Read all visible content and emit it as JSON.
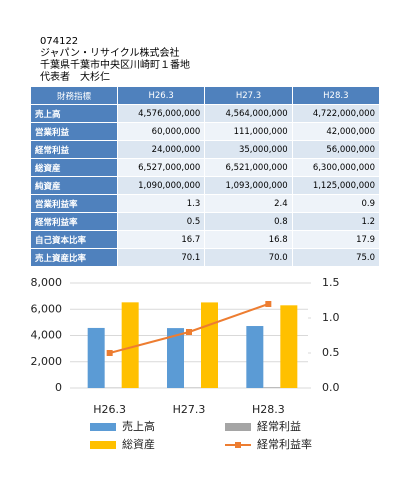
{
  "header": {
    "code": "074122",
    "company": "ジャパン・リサイクル株式会社",
    "address": "千葉県千葉市中央区川崎町１番地",
    "representative": "代表者　大杉仁"
  },
  "table": {
    "columns": [
      "財務指標",
      "H26.3",
      "H27.3",
      "H28.3"
    ],
    "rows": [
      [
        "売上高",
        "4,576,000,000",
        "4,564,000,000",
        "4,722,000,000"
      ],
      [
        "営業利益",
        "60,000,000",
        "111,000,000",
        "42,000,000"
      ],
      [
        "経常利益",
        "24,000,000",
        "35,000,000",
        "56,000,000"
      ],
      [
        "総資産",
        "6,527,000,000",
        "6,521,000,000",
        "6,300,000,000"
      ],
      [
        "純資産",
        "1,090,000,000",
        "1,093,000,000",
        "1,125,000,000"
      ],
      [
        "営業利益率",
        "1.3",
        "2.4",
        "0.9"
      ],
      [
        "経常利益率",
        "0.5",
        "0.8",
        "1.2"
      ],
      [
        "自己資本比率",
        "16.7",
        "16.8",
        "17.9"
      ],
      [
        "売上資産比率",
        "70.1",
        "70.0",
        "75.0"
      ]
    ]
  },
  "chart_data": {
    "type": "bar",
    "categories": [
      "H26.3",
      "H27.3",
      "H28.3"
    ],
    "series": [
      {
        "name": "売上高",
        "color": "#5b9bd5",
        "type": "bar",
        "values": [
          4576,
          4564,
          4722
        ]
      },
      {
        "name": "経常利益",
        "color": "#a5a5a5",
        "type": "bar",
        "values": [
          24,
          35,
          56
        ]
      },
      {
        "name": "総資産",
        "color": "#ffc000",
        "type": "bar",
        "values": [
          6527,
          6521,
          6300
        ]
      },
      {
        "name": "経常利益率",
        "color": "#ed7d31",
        "type": "line",
        "axis": "y2",
        "values": [
          0.5,
          0.8,
          1.2
        ]
      }
    ],
    "ylim": [
      0,
      8000
    ],
    "yticks": [
      0,
      {
        "value": 2000,
        "label": "2,000"
      },
      {
        "value": 4000,
        "label": "4,000"
      },
      {
        "value": 6000,
        "label": "6,000"
      },
      {
        "value": 8000,
        "label": "8,000"
      }
    ],
    "y2lim": [
      0,
      1.5
    ],
    "y2ticks": [
      {
        "value": 0,
        "label": "0.0"
      },
      0.5,
      {
        "value": 1,
        "label": "1.0"
      },
      1.5
    ],
    "grid": true
  }
}
